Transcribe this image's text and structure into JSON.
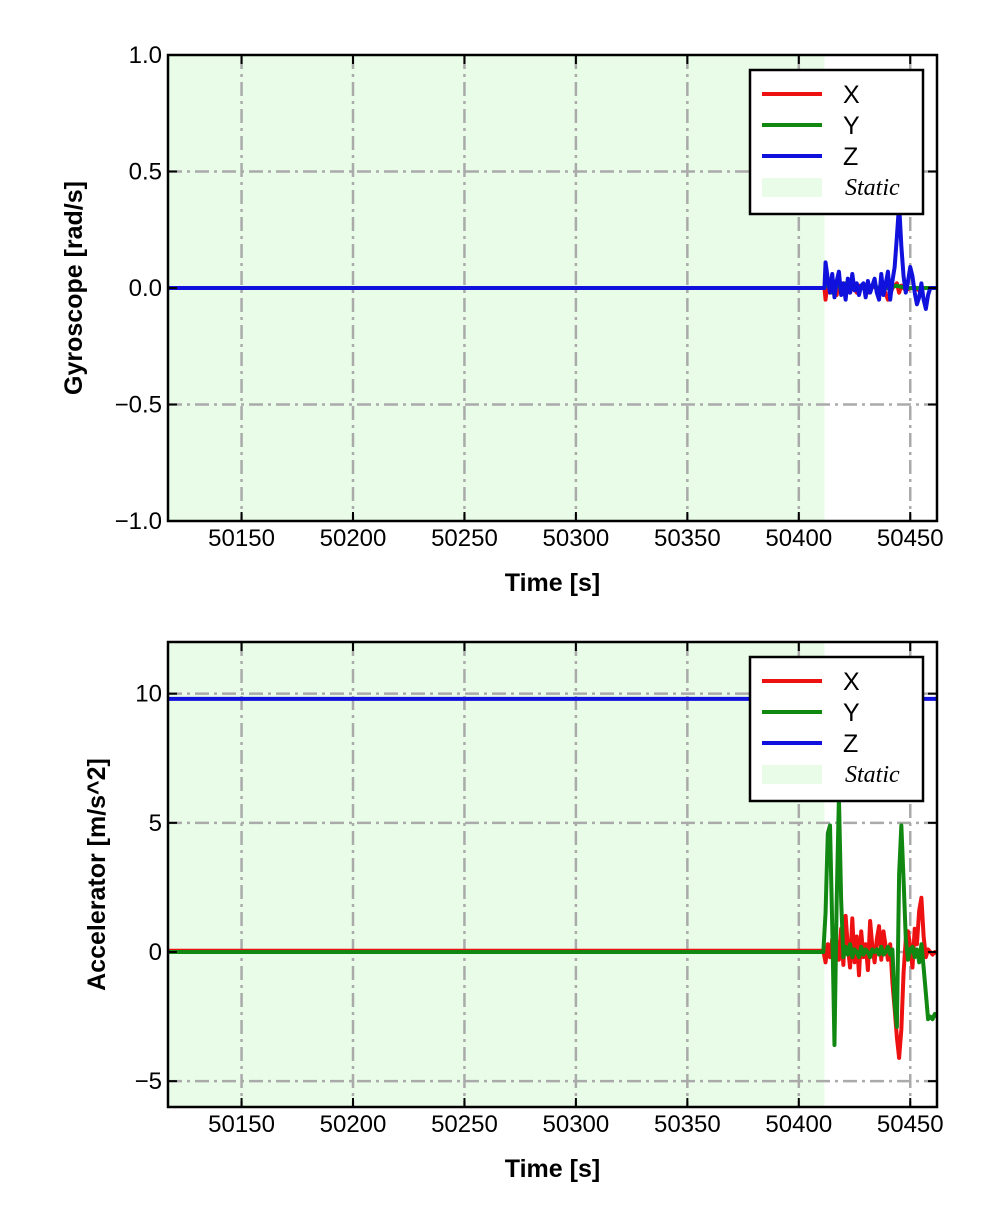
{
  "chart_data": [
    {
      "type": "line",
      "xlabel": "Time [s]",
      "ylabel": "Gyroscope [rad/s]",
      "xlim": [
        50117,
        50462
      ],
      "ylim": [
        -1.0,
        1.0
      ],
      "xticks": [
        50150,
        50200,
        50250,
        50300,
        50350,
        50400,
        50450
      ],
      "xtick_labels": [
        "50150",
        "50200",
        "50250",
        "50300",
        "50350",
        "50400",
        "50450"
      ],
      "yticks": [
        1.0,
        0.5,
        0.0,
        -0.5,
        -1.0
      ],
      "ytick_labels": [
        "1.0",
        "0.5",
        "0.0",
        "−0.5",
        "−1.0"
      ],
      "grid": true,
      "legend_position": "top-right",
      "static_span": [
        50117,
        50411.5
      ],
      "static_label": "Static",
      "series": [
        {
          "name": "X",
          "color": "#ee1111",
          "x": [
            50117,
            50411.5,
            50412,
            50413,
            50414,
            50415,
            50416,
            50417,
            50418,
            50419,
            50420,
            50421,
            50422,
            50423,
            50424,
            50425,
            50426,
            50427,
            50429,
            50431,
            50433,
            50435,
            50437,
            50438,
            50440,
            50442,
            50444,
            50445,
            50446,
            50447,
            50448,
            50450,
            50452,
            50454,
            50456,
            50458,
            50460,
            50462
          ],
          "y": [
            0.0,
            0.0,
            -0.05,
            0.03,
            -0.02,
            0.02,
            0.01,
            -0.03,
            0.04,
            -0.01,
            0.02,
            -0.04,
            0.03,
            -0.02,
            0.01,
            0.0,
            -0.02,
            0.01,
            0.0,
            -0.02,
            0.01,
            0.0,
            -0.01,
            0.0,
            -0.05,
            0.0,
            0.02,
            -0.02,
            0.01,
            0.0,
            -0.01,
            0.0,
            0.0,
            -0.01,
            0.0,
            0.0,
            0.0,
            0.0
          ]
        },
        {
          "name": "Y",
          "color": "#118811",
          "x": [
            50117,
            50411.5,
            50413,
            50415,
            50417,
            50419,
            50421,
            50423,
            50425,
            50427,
            50430,
            50433,
            50436,
            50440,
            50444,
            50448,
            50452,
            50456,
            50460,
            50462
          ],
          "y": [
            0.0,
            0.0,
            0.02,
            -0.02,
            0.03,
            -0.01,
            0.02,
            -0.01,
            0.01,
            0.0,
            0.0,
            0.01,
            0.0,
            0.0,
            0.01,
            0.0,
            0.0,
            0.0,
            0.0,
            0.0
          ]
        },
        {
          "name": "Z",
          "color": "#1111dd",
          "x": [
            50117,
            50411.5,
            50412,
            50413,
            50414,
            50415,
            50416,
            50417,
            50418,
            50419,
            50420,
            50421,
            50422,
            50423,
            50424,
            50425,
            50426,
            50427,
            50428,
            50429,
            50430,
            50431,
            50432,
            50433,
            50434,
            50435,
            50436,
            50437,
            50438,
            50439,
            50440,
            50441,
            50442,
            50443,
            50444,
            50445,
            50446,
            50447,
            50448,
            50449,
            50450,
            50451,
            50452,
            50453,
            50454,
            50455,
            50456,
            50457,
            50458,
            50459,
            50460,
            50461,
            50462
          ],
          "y": [
            0.0,
            0.0,
            0.11,
            0.04,
            -0.02,
            0.06,
            -0.04,
            0.03,
            0.07,
            -0.03,
            0.02,
            -0.05,
            0.04,
            -0.02,
            0.06,
            -0.01,
            0.02,
            -0.03,
            0.01,
            0.02,
            -0.04,
            0.03,
            -0.02,
            0.01,
            0.04,
            -0.02,
            -0.05,
            0.06,
            -0.03,
            0.02,
            0.07,
            -0.05,
            0.03,
            0.09,
            0.22,
            0.36,
            0.18,
            0.05,
            -0.02,
            0.03,
            0.09,
            0.05,
            -0.02,
            -0.07,
            -0.04,
            0.02,
            -0.05,
            -0.09,
            -0.03,
            0.0,
            0.0,
            0.0,
            0.0
          ]
        }
      ]
    },
    {
      "type": "line",
      "xlabel": "Time [s]",
      "ylabel": "Accelerator [m/s^2]",
      "xlim": [
        50117,
        50462
      ],
      "ylim": [
        -6,
        12
      ],
      "xticks": [
        50150,
        50200,
        50250,
        50300,
        50350,
        50400,
        50450
      ],
      "xtick_labels": [
        "50150",
        "50200",
        "50250",
        "50300",
        "50350",
        "50400",
        "50450"
      ],
      "yticks": [
        10,
        5,
        0,
        -5
      ],
      "ytick_labels": [
        "10",
        "5",
        "0",
        "−5"
      ],
      "grid": true,
      "legend_position": "top-right",
      "static_span": [
        50117,
        50411.5
      ],
      "static_label": "Static",
      "series": [
        {
          "name": "X",
          "color": "#ee1111",
          "x": [
            50117,
            50411,
            50412,
            50413,
            50414,
            50415,
            50416,
            50417,
            50418,
            50419,
            50420,
            50421,
            50422,
            50423,
            50424,
            50425,
            50426,
            50427,
            50428,
            50429,
            50430,
            50431,
            50432,
            50433,
            50434,
            50435,
            50436,
            50437,
            50438,
            50439,
            50440,
            50441,
            50442,
            50443,
            50444,
            50445,
            50446,
            50447,
            50448,
            50449,
            50450,
            50451,
            50452,
            50453,
            50454,
            50455,
            50456,
            50457,
            50458,
            50459,
            50460,
            50461,
            50462
          ],
          "y": [
            0.05,
            0.05,
            -0.4,
            0.3,
            -0.2,
            0.5,
            -0.8,
            0.4,
            -0.3,
            0.9,
            -0.5,
            1.4,
            0.2,
            -0.6,
            1.3,
            -0.4,
            0.6,
            -0.9,
            0.8,
            -0.2,
            0.3,
            -0.7,
            1.2,
            0.2,
            -0.4,
            0.5,
            1.0,
            -0.3,
            0.8,
            0.2,
            -0.3,
            0.3,
            -1.2,
            -2.2,
            -3.3,
            -4.1,
            -3.0,
            -0.8,
            0.5,
            0.8,
            0.2,
            -0.6,
            0.9,
            0.3,
            1.6,
            2.1,
            0.6,
            -0.2,
            0.1,
            0.0,
            -0.1,
            0.0,
            -0.05
          ]
        },
        {
          "name": "Y",
          "color": "#118811",
          "x": [
            50117,
            50411,
            50412,
            50413,
            50414,
            50415,
            50416,
            50417,
            50418,
            50419,
            50420,
            50421,
            50422,
            50423,
            50424,
            50425,
            50426,
            50427,
            50428,
            50429,
            50430,
            50431,
            50432,
            50433,
            50434,
            50435,
            50436,
            50437,
            50438,
            50439,
            50440,
            50441,
            50442,
            50443,
            50444,
            50445,
            50446,
            50447,
            50448,
            50449,
            50450,
            50451,
            50452,
            50453,
            50454,
            50455,
            50456,
            50457,
            50458,
            50459,
            50460,
            50461,
            50462
          ],
          "y": [
            0.0,
            0.0,
            1.5,
            4.6,
            4.9,
            1.0,
            -3.6,
            2.0,
            6.0,
            2.0,
            -0.2,
            0.2,
            -0.1,
            0.3,
            -0.2,
            0.1,
            0.0,
            -0.2,
            0.2,
            -0.1,
            0.1,
            0.0,
            -0.2,
            0.1,
            0.0,
            0.1,
            -0.1,
            0.2,
            -0.1,
            0.0,
            0.2,
            -0.1,
            0.1,
            -2.0,
            -2.9,
            3.0,
            4.9,
            2.8,
            0.5,
            -0.3,
            0.1,
            0.2,
            -0.2,
            0.1,
            -0.4,
            0.3,
            -0.6,
            -1.6,
            -2.6,
            -2.5,
            -2.6,
            -2.4,
            -2.5
          ]
        },
        {
          "name": "Z",
          "color": "#1111dd",
          "x": [
            50117,
            50462
          ],
          "y": [
            9.8,
            9.8
          ]
        }
      ]
    }
  ]
}
